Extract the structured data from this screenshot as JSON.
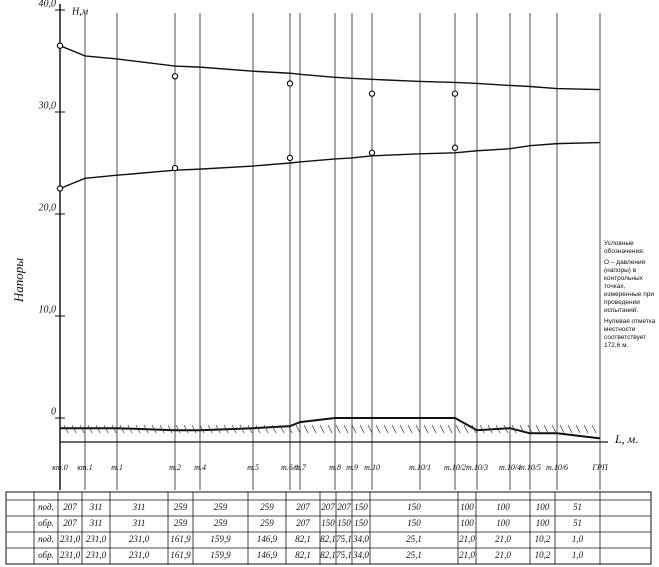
{
  "chart_data": {
    "type": "line",
    "y_label": "Н,м",
    "y_axis_title": "Напоры",
    "x_label": "L, м.",
    "legend_title": "Условные обозначения:",
    "legend_text": "O – давления (напоры) в контрольных точках, измеренные при проведении испытаний.",
    "note": "Нулевая отметка местности соответствует 172,6 м.",
    "categories": [
      "кт.0",
      "кт.1",
      "т.1",
      "т.2",
      "т.4",
      "т.5",
      "т.6/1",
      "т.7",
      "т.8",
      "т.9",
      "т.10",
      "т.10/1",
      "т.10/2",
      "т.10/3",
      "т.10/4",
      "т.10/5",
      "т.10/6",
      "ГРП"
    ],
    "ylim": [
      -3,
      40.5
    ],
    "yticks": [
      0,
      {
        "value": 10,
        "label": "10,0"
      },
      {
        "value": 20,
        "label": "20,0"
      },
      {
        "value": 30,
        "label": "30,0"
      },
      {
        "value": 40,
        "label": "40,0"
      }
    ],
    "grid": false,
    "series": [
      {
        "color": "#111",
        "values": [
          36.5,
          35.5,
          35.2,
          34.5,
          34.4,
          34.0,
          33.8,
          33.7,
          33.4,
          33.3,
          33.2,
          33.0,
          32.9,
          32.8,
          32.6,
          32.5,
          32.3,
          32.2
        ]
      },
      {
        "color": "#111",
        "values": [
          22.5,
          23.5,
          23.8,
          24.3,
          24.4,
          24.7,
          25.0,
          25.1,
          25.4,
          25.5,
          25.7,
          25.9,
          26.0,
          26.2,
          26.4,
          26.7,
          26.9,
          27.0
        ]
      },
      {
        "color": "#111",
        "values": [
          -1,
          -1,
          -1,
          -1.2,
          -1.2,
          -1,
          -0.8,
          -0.4,
          0,
          0,
          0,
          0,
          0,
          -1.2,
          -1,
          -1.5,
          -1.5,
          -2
        ]
      }
    ],
    "measured": [
      {
        "color": "#111",
        "values": [
          36.5,
          null,
          null,
          33.5,
          null,
          null,
          32.8,
          null,
          null,
          null,
          31.8,
          null,
          31.8,
          null,
          null,
          null,
          null,
          null
        ]
      },
      {
        "color": "#111",
        "values": [
          22.5,
          null,
          null,
          24.5,
          null,
          null,
          25.5,
          null,
          null,
          null,
          26.0,
          null,
          26.5,
          null,
          null,
          null,
          null,
          null
        ]
      }
    ]
  },
  "table": {
    "rows": [
      {
        "label": "под.",
        "cells": [
          "207",
          "311",
          "311",
          "259",
          "259",
          "259",
          "207",
          "207",
          "207",
          "150",
          "150",
          "100",
          "100",
          "100",
          "51"
        ]
      },
      {
        "label": "обр.",
        "cells": [
          "207",
          "311",
          "311",
          "259",
          "259",
          "259",
          "207",
          "150",
          "150",
          "150",
          "150",
          "100",
          "100",
          "100",
          "51"
        ]
      },
      {
        "label": "под.",
        "cells": [
          "231,0",
          "231,0",
          "231,0",
          "161,9",
          "159,9",
          "146,9",
          "82,1",
          "82,1",
          "75,1",
          "34,0",
          "25,1",
          "21,0",
          "21,0",
          "10,2",
          "1,0"
        ]
      },
      {
        "label": "обр.",
        "cells": [
          "231,0",
          "231,0",
          "231,0",
          "161,9",
          "159,9",
          "146,9",
          "82,1",
          "82,1",
          "75,1",
          "34,0",
          "25,1",
          "21,0",
          "21,0",
          "10,2",
          "1,0"
        ]
      }
    ]
  }
}
